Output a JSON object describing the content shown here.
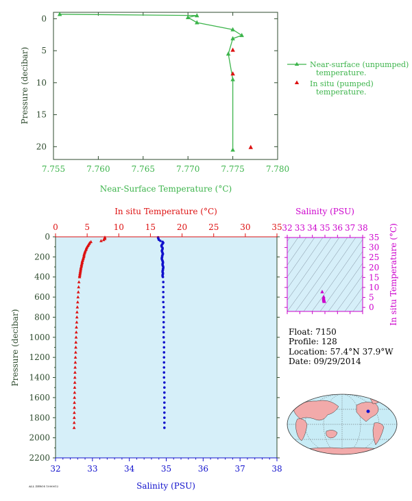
{
  "colors": {
    "green": "#3cb44b",
    "red": "#dd1111",
    "blue": "#1010cc",
    "magenta": "#cc00cc",
    "axis_dark": "#2d4a2d",
    "plot_bg": "#d6eff9",
    "land": "#f2aaaa",
    "ocean": "#c8ecf6"
  },
  "chart_data": [
    {
      "type": "line",
      "xlabel": "Near-Surface Temperature (°C)",
      "ylabel": "Pressure (decibar)",
      "xlim": [
        7.755,
        7.78
      ],
      "ylim": [
        22,
        -1
      ],
      "x_ticks": [
        "7.755",
        "7.760",
        "7.765",
        "7.770",
        "7.775",
        "7.780"
      ],
      "y_ticks": [
        "0",
        "5",
        "10",
        "15",
        "20"
      ],
      "legend": {
        "placement": "right",
        "items": [
          {
            "line1": "Near-surface (unpumped)",
            "line2": "temperature."
          },
          {
            "line1": "In situ (pumped)",
            "line2": "temperature."
          }
        ]
      },
      "series": [
        {
          "name": "Near-surface (unpumped) temperature.",
          "marker": "triangle-line",
          "points": [
            [
              7.7557,
              -0.7
            ],
            [
              7.771,
              -0.5
            ],
            [
              7.77,
              -0.2
            ],
            [
              7.771,
              0.6
            ],
            [
              7.775,
              1.7
            ],
            [
              7.776,
              2.6
            ],
            [
              7.775,
              3.1
            ],
            [
              7.7745,
              5.5
            ],
            [
              7.775,
              9.5
            ],
            [
              7.775,
              20.5
            ]
          ]
        },
        {
          "name": "In situ (pumped) temperature.",
          "marker": "triangle",
          "points": [
            [
              7.775,
              4.9
            ],
            [
              7.775,
              8.6
            ],
            [
              7.777,
              20.1
            ]
          ]
        }
      ]
    },
    {
      "type": "scatter",
      "top_xlabel": "In situ Temperature (°C)",
      "bottom_xlabel": "Salinity (PSU)",
      "ylabel": "Pressure (decibar)",
      "temp_xlim": [
        0,
        35
      ],
      "sal_xlim": [
        32,
        38
      ],
      "ylim": [
        2200,
        0
      ],
      "temp_ticks": [
        "0",
        "5",
        "10",
        "15",
        "20",
        "25",
        "30",
        "35"
      ],
      "sal_ticks": [
        "32",
        "33",
        "34",
        "35",
        "36",
        "37",
        "38"
      ],
      "y_ticks": [
        "0",
        "200",
        "400",
        "600",
        "800",
        "1000",
        "1200",
        "1400",
        "1600",
        "1800",
        "2000",
        "2200"
      ],
      "temperature_profile": {
        "marker": "triangle",
        "pressure": [
          5,
          10,
          20,
          30,
          40,
          50,
          60,
          70,
          80,
          90,
          100,
          110,
          120,
          130,
          140,
          150,
          160,
          170,
          180,
          190,
          200,
          210,
          220,
          230,
          240,
          250,
          260,
          270,
          280,
          290,
          300,
          310,
          320,
          330,
          340,
          350,
          360,
          370,
          380,
          390,
          400,
          450,
          500,
          550,
          600,
          650,
          700,
          750,
          800,
          850,
          900,
          950,
          1000,
          1050,
          1100,
          1150,
          1200,
          1250,
          1300,
          1350,
          1400,
          1450,
          1500,
          1550,
          1600,
          1650,
          1700,
          1750,
          1800,
          1850,
          1900
        ],
        "temperature": [
          7.8,
          7.8,
          7.8,
          7.6,
          7.2,
          5.6,
          5.4,
          5.3,
          5.2,
          5.1,
          5.0,
          4.9,
          4.85,
          4.8,
          4.7,
          4.65,
          4.6,
          4.55,
          4.5,
          4.5,
          4.45,
          4.4,
          4.35,
          4.3,
          4.25,
          4.2,
          4.2,
          4.15,
          4.1,
          4.1,
          4.05,
          4.0,
          4.0,
          3.95,
          3.95,
          3.9,
          3.9,
          3.85,
          3.85,
          3.8,
          3.8,
          3.7,
          3.65,
          3.6,
          3.55,
          3.5,
          3.45,
          3.4,
          3.38,
          3.35,
          3.3,
          3.28,
          3.25,
          3.22,
          3.2,
          3.18,
          3.15,
          3.13,
          3.1,
          3.08,
          3.06,
          3.05,
          3.03,
          3.02,
          3.0,
          2.99,
          2.98,
          2.97,
          2.96,
          2.95,
          2.94
        ]
      },
      "salinity_profile": {
        "marker": "dot",
        "pressure": [
          5,
          10,
          20,
          30,
          40,
          50,
          60,
          70,
          80,
          90,
          100,
          110,
          120,
          130,
          140,
          150,
          160,
          170,
          180,
          190,
          200,
          210,
          220,
          230,
          240,
          250,
          260,
          270,
          280,
          290,
          300,
          310,
          320,
          330,
          340,
          350,
          360,
          370,
          380,
          390,
          400,
          450,
          500,
          550,
          600,
          650,
          700,
          750,
          800,
          850,
          900,
          950,
          1000,
          1050,
          1100,
          1150,
          1200,
          1250,
          1300,
          1350,
          1400,
          1450,
          1500,
          1550,
          1600,
          1650,
          1700,
          1750,
          1800,
          1850,
          1900
        ],
        "salinity": [
          34.78,
          34.78,
          34.79,
          34.8,
          34.84,
          34.9,
          34.92,
          34.9,
          34.88,
          34.87,
          34.88,
          34.9,
          34.9,
          34.89,
          34.88,
          34.89,
          34.9,
          34.91,
          34.9,
          34.89,
          34.89,
          34.88,
          34.88,
          34.89,
          34.9,
          34.91,
          34.91,
          34.9,
          34.9,
          34.91,
          34.92,
          34.92,
          34.91,
          34.91,
          34.9,
          34.9,
          34.91,
          34.91,
          34.9,
          34.9,
          34.91,
          34.92,
          34.92,
          34.92,
          34.92,
          34.92,
          34.93,
          34.93,
          34.93,
          34.93,
          34.93,
          34.93,
          34.93,
          34.94,
          34.94,
          34.94,
          34.94,
          34.94,
          34.94,
          34.94,
          34.94,
          34.95,
          34.95,
          34.95,
          34.95,
          34.95,
          34.95,
          34.95,
          34.95,
          34.95,
          34.95
        ]
      }
    },
    {
      "type": "scatter",
      "top_xlabel": "Salinity (PSU)",
      "right_ylabel": "In situ Temperature (°C)",
      "xlim": [
        32,
        38
      ],
      "ylim": [
        -2,
        35
      ],
      "x_ticks": [
        "32",
        "33",
        "34",
        "35",
        "36",
        "37",
        "38"
      ],
      "y_ticks": [
        "0",
        "5",
        "10",
        "15",
        "20",
        "25",
        "30",
        "35"
      ],
      "points": [
        [
          34.78,
          7.8
        ],
        [
          34.9,
          5.3
        ],
        [
          34.89,
          4.7
        ],
        [
          34.9,
          4.2
        ],
        [
          34.91,
          3.8
        ],
        [
          34.92,
          3.5
        ],
        [
          34.93,
          3.3
        ],
        [
          34.94,
          3.1
        ],
        [
          34.95,
          2.95
        ]
      ]
    }
  ],
  "info": {
    "float": "Float:  7150",
    "profile": "Profile:  128",
    "location": "Location:  57.4°N  37.9°W",
    "date": "Date:  09/29/2014"
  },
  "footer": "ALL ZEROS 1000012"
}
